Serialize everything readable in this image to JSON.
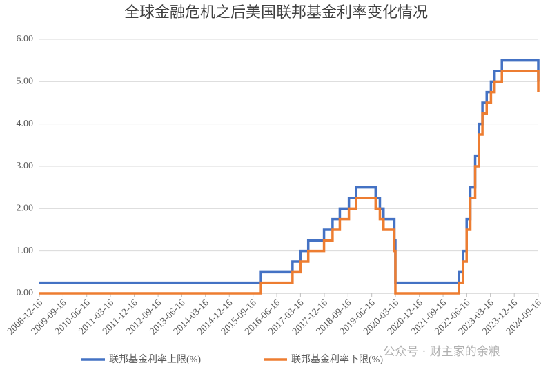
{
  "chart_data": {
    "type": "step-line",
    "title": "全球金融危机之后美国联邦基金利率变化情况",
    "watermark": "公众号 · 财主家的余粮",
    "x": [
      "2008-12-16",
      "2015-12-16",
      "2016-12-14",
      "2017-03-15",
      "2017-06-14",
      "2017-12-13",
      "2018-03-21",
      "2018-06-13",
      "2018-09-26",
      "2018-12-19",
      "2019-07-31",
      "2019-09-18",
      "2019-10-30",
      "2020-03-03",
      "2020-03-15",
      "2022-03-16",
      "2022-05-04",
      "2022-06-15",
      "2022-07-27",
      "2022-09-21",
      "2022-11-02",
      "2022-12-14",
      "2023-02-01",
      "2023-03-22",
      "2023-05-03",
      "2023-07-26",
      "2024-09-18"
    ],
    "series": [
      {
        "name": "联邦基金利率上限(%)",
        "color": "#4472c4",
        "values": [
          0.25,
          0.5,
          0.75,
          1.0,
          1.25,
          1.5,
          1.75,
          2.0,
          2.25,
          2.5,
          2.25,
          2.0,
          1.75,
          1.25,
          0.25,
          0.5,
          1.0,
          1.75,
          2.5,
          3.25,
          4.0,
          4.5,
          4.75,
          5.0,
          5.25,
          5.5,
          5.0
        ]
      },
      {
        "name": "联邦基金利率下限(%)",
        "color": "#ed7d31",
        "values": [
          0,
          0.25,
          0.5,
          0.75,
          1.0,
          1.25,
          1.5,
          1.75,
          2.0,
          2.25,
          2.0,
          1.75,
          1.5,
          1.0,
          0,
          0.25,
          0.75,
          1.5,
          2.25,
          3.0,
          3.75,
          4.25,
          4.5,
          4.75,
          5.0,
          5.25,
          4.75
        ]
      }
    ],
    "xlim": [
      "2008-12-16",
      "2024-09-18"
    ],
    "xticks": [
      "2008-12-16",
      "2009-09-16",
      "2010-06-16",
      "2011-03-16",
      "2011-12-16",
      "2012-09-16",
      "2013-06-16",
      "2014-03-16",
      "2014-12-16",
      "2015-09-16",
      "2016-06-16",
      "2017-03-16",
      "2017-12-16",
      "2018-09-16",
      "2019-06-16",
      "2020-03-16",
      "2020-12-16",
      "2021-09-16",
      "2022-06-16",
      "2023-03-16",
      "2023-12-16",
      "2024-09-16"
    ],
    "ylim": [
      0,
      6
    ],
    "yticks": [
      {
        "value": 0,
        "label": "0.00"
      },
      {
        "value": 1,
        "label": "1.00"
      },
      {
        "value": 2,
        "label": "2.00"
      },
      {
        "value": 3,
        "label": "3.00"
      },
      {
        "value": 4,
        "label": "4.00"
      },
      {
        "value": 5,
        "label": "5.00"
      },
      {
        "value": 6,
        "label": "6.00"
      }
    ],
    "grid": true
  }
}
